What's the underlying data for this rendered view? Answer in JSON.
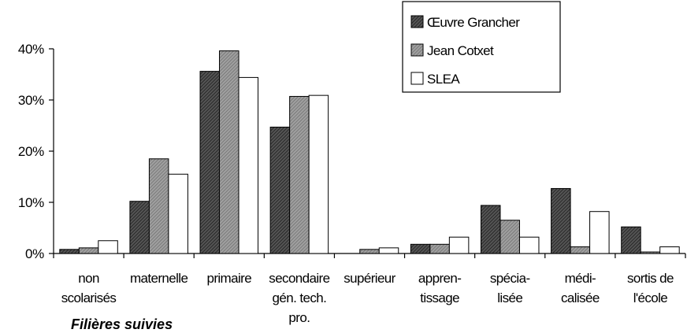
{
  "chart_data": {
    "type": "bar",
    "xlabel": "Filières suivies",
    "ylabel": "",
    "ylim": [
      0,
      0.4
    ],
    "yticks": [
      "0%",
      "10%",
      "20%",
      "30%",
      "40%"
    ],
    "categories": [
      [
        "non",
        "scolarisés"
      ],
      [
        "maternelle"
      ],
      [
        "primaire"
      ],
      [
        "secondaire",
        "gén. tech.",
        "pro."
      ],
      [
        "supérieur"
      ],
      [
        "appren-",
        "tissage"
      ],
      [
        "spécia-",
        "lisée"
      ],
      [
        "médi-",
        "calisée"
      ],
      [
        "sortis de",
        "l'école"
      ]
    ],
    "series": [
      {
        "name": "Œuvre Grancher",
        "values": [
          0.008,
          0.102,
          0.356,
          0.247,
          0.0,
          0.018,
          0.094,
          0.127,
          0.052
        ]
      },
      {
        "name": "Jean Cotxet",
        "values": [
          0.011,
          0.185,
          0.396,
          0.307,
          0.008,
          0.018,
          0.065,
          0.013,
          0.003
        ]
      },
      {
        "name": "SLEA",
        "values": [
          0.025,
          0.155,
          0.344,
          0.309,
          0.011,
          0.032,
          0.032,
          0.082,
          0.013
        ]
      }
    ],
    "grid": false,
    "legend": "top-right",
    "colors": [
      "#3a3a3a",
      "#8a8a8a",
      "#ffffff"
    ]
  }
}
